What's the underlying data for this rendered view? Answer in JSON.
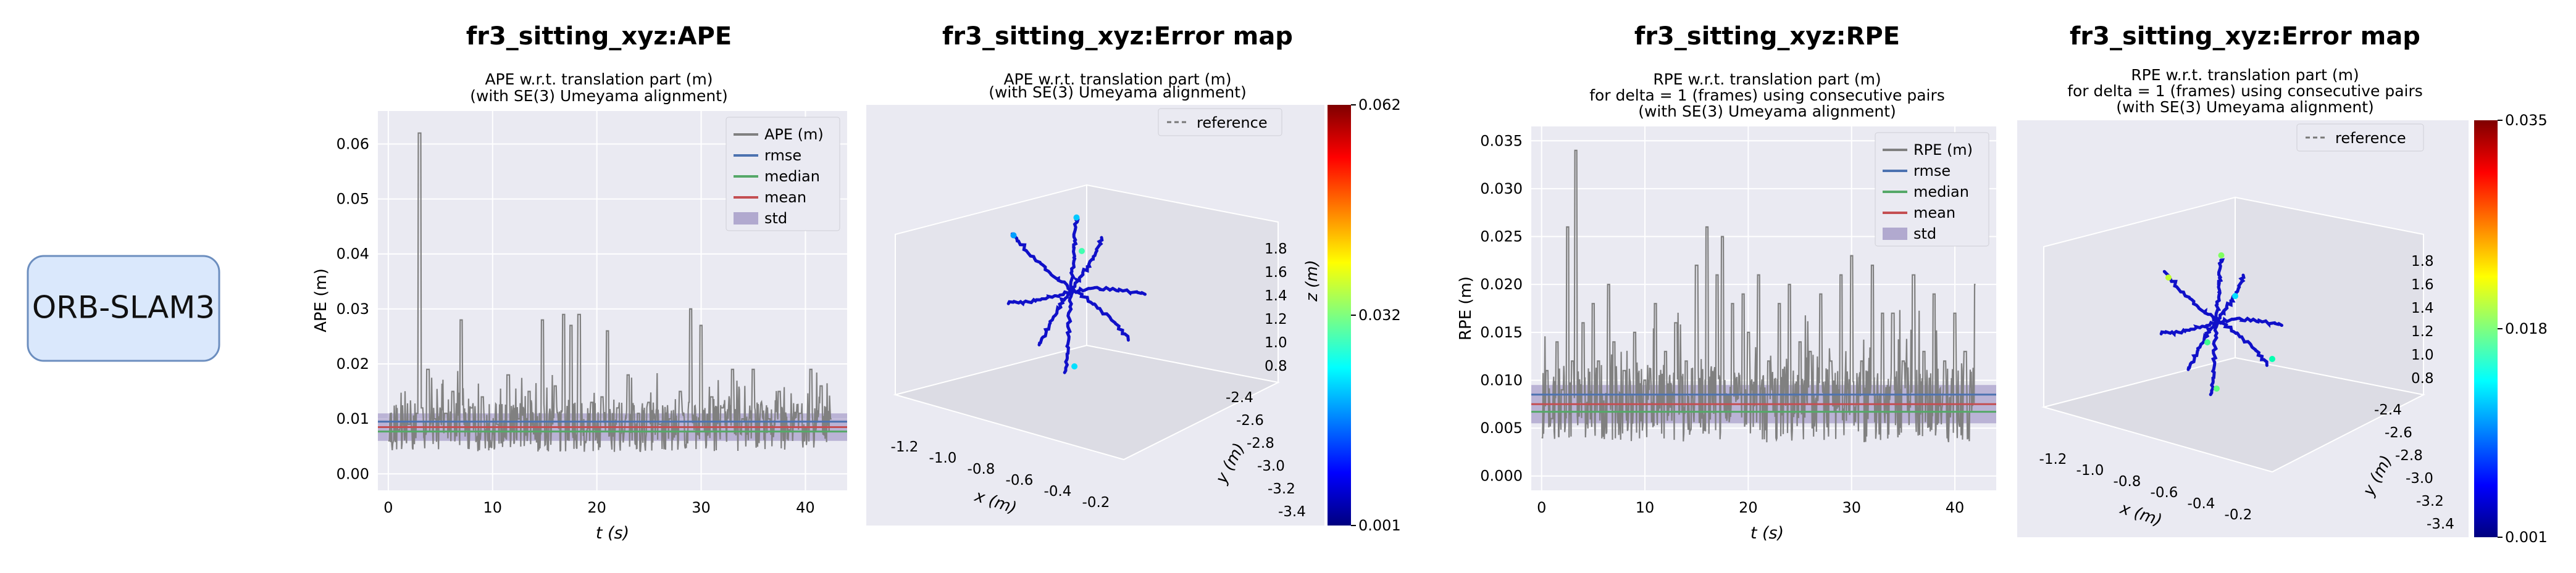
{
  "method_label": "ORB-SLAM3",
  "chart_data": [
    {
      "type": "line",
      "title": "fr3_sitting_xyz:APE",
      "subtitle": [
        "APE w.r.t. translation part (m)",
        "(with SE(3) Umeyama alignment)"
      ],
      "xlabel": "t (s)",
      "ylabel": "APE (m)",
      "xlim": [
        -1,
        44
      ],
      "ylim": [
        -0.003,
        0.066
      ],
      "xticks": [
        0,
        10,
        20,
        30,
        40
      ],
      "yticks": [
        0.0,
        0.01,
        0.02,
        0.03,
        0.04,
        0.05,
        0.06
      ],
      "ytick_labels": [
        "0.00",
        "0.01",
        "0.02",
        "0.03",
        "0.04",
        "0.05",
        "0.06"
      ],
      "grid": true,
      "legend_position": "top-right",
      "legend": [
        "APE (m)",
        "rmse",
        "median",
        "mean",
        "std"
      ],
      "stats": {
        "rmse": 0.0095,
        "median": 0.0077,
        "mean": 0.0085,
        "std_low": 0.006,
        "std_high": 0.011
      },
      "series": [
        {
          "name": "APE (m)",
          "color": "#808080",
          "x": [
            0,
            1,
            2,
            2.8,
            3,
            3.2,
            3.8,
            4.5,
            5.5,
            6.2,
            7,
            8,
            9,
            10.5,
            11.5,
            12.5,
            13.5,
            14.8,
            16,
            16.8,
            17.5,
            18.3,
            19.5,
            20.5,
            21,
            22,
            23,
            24,
            25,
            26,
            27,
            28,
            29,
            30,
            31,
            32,
            33,
            34,
            35,
            36.5,
            37.5,
            38.5,
            39.5,
            40.5,
            41.5,
            42.5
          ],
          "values": [
            0.006,
            0.008,
            0.009,
            0.011,
            0.062,
            0.012,
            0.019,
            0.01,
            0.011,
            0.015,
            0.028,
            0.012,
            0.014,
            0.009,
            0.018,
            0.01,
            0.015,
            0.028,
            0.016,
            0.029,
            0.027,
            0.029,
            0.013,
            0.014,
            0.026,
            0.012,
            0.018,
            0.011,
            0.013,
            0.009,
            0.01,
            0.015,
            0.03,
            0.027,
            0.014,
            0.012,
            0.019,
            0.01,
            0.019,
            0.01,
            0.015,
            0.008,
            0.011,
            0.019,
            0.016,
            0.01
          ]
        }
      ]
    },
    {
      "type": "scatter",
      "title": "fr3_sitting_xyz:Error map",
      "subtitle": [
        "APE w.r.t. translation part (m)",
        "(with SE(3) Umeyama alignment)"
      ],
      "xlabel": "x (m)",
      "ylabel": "y (m)",
      "zlabel": "z (m)",
      "xticks": [
        "-1.2",
        "-1.0",
        "-0.8",
        "-0.6",
        "-0.4",
        "-0.2"
      ],
      "yticks": [
        "-2.4",
        "-2.6",
        "-2.8",
        "-3.0",
        "-3.2",
        "-3.4"
      ],
      "zticks": [
        "0.8",
        "1.0",
        "1.2",
        "1.4",
        "1.6",
        "1.8"
      ],
      "legend": [
        "reference"
      ],
      "legend_position": "top-right",
      "colorbar": {
        "min": "0.001",
        "mid": "0.032",
        "max": "0.062"
      }
    },
    {
      "type": "line",
      "title": "fr3_sitting_xyz:RPE",
      "subtitle": [
        "RPE w.r.t. translation part (m)",
        "for delta = 1 (frames) using consecutive pairs",
        "(with SE(3) Umeyama alignment)"
      ],
      "xlabel": "t (s)",
      "ylabel": "RPE (m)",
      "xlim": [
        -1,
        44
      ],
      "ylim": [
        -0.0015,
        0.0365
      ],
      "xticks": [
        0,
        10,
        20,
        30,
        40
      ],
      "yticks": [
        0.0,
        0.005,
        0.01,
        0.015,
        0.02,
        0.025,
        0.03,
        0.035
      ],
      "ytick_labels": [
        "0.000",
        "0.005",
        "0.010",
        "0.015",
        "0.020",
        "0.025",
        "0.030",
        "0.035"
      ],
      "grid": true,
      "legend_position": "top-right",
      "legend": [
        "RPE (m)",
        "rmse",
        "median",
        "mean",
        "std"
      ],
      "stats": {
        "rmse": 0.0085,
        "median": 0.0067,
        "mean": 0.0075,
        "std_low": 0.0055,
        "std_high": 0.0095
      },
      "series": [
        {
          "name": "RPE (m)",
          "color": "#808080",
          "x": [
            0,
            0.5,
            1,
            1.5,
            2,
            2.5,
            3,
            3.3,
            4,
            5,
            5.5,
            6.5,
            7,
            8,
            9,
            10,
            11,
            12,
            13,
            14,
            15,
            16,
            17,
            17.5,
            18.5,
            19.5,
            20,
            21,
            22,
            23,
            24,
            25,
            26,
            27,
            28,
            29,
            30,
            31,
            32,
            33,
            34,
            35,
            36,
            37,
            38,
            39,
            40,
            41,
            42
          ],
          "values": [
            0.004,
            0.011,
            0.006,
            0.014,
            0.009,
            0.026,
            0.012,
            0.034,
            0.016,
            0.018,
            0.012,
            0.02,
            0.014,
            0.011,
            0.015,
            0.01,
            0.018,
            0.013,
            0.016,
            0.012,
            0.022,
            0.026,
            0.021,
            0.025,
            0.018,
            0.019,
            0.015,
            0.021,
            0.012,
            0.018,
            0.02,
            0.014,
            0.013,
            0.019,
            0.012,
            0.021,
            0.023,
            0.012,
            0.022,
            0.017,
            0.017,
            0.012,
            0.021,
            0.013,
            0.019,
            0.012,
            0.017,
            0.013,
            0.02
          ]
        }
      ]
    },
    {
      "type": "scatter",
      "title": "fr3_sitting_xyz:Error map",
      "subtitle": [
        "RPE w.r.t. translation part (m)",
        "for delta = 1 (frames) using consecutive pairs",
        "(with SE(3) Umeyama alignment)"
      ],
      "xlabel": "x (m)",
      "ylabel": "y (m)",
      "zlabel": "z (m)",
      "xticks": [
        "-1.2",
        "-1.0",
        "-0.8",
        "-0.6",
        "-0.4",
        "-0.2"
      ],
      "yticks": [
        "-2.4",
        "-2.6",
        "-2.8",
        "-3.0",
        "-3.2",
        "-3.4"
      ],
      "zticks": [
        "0.8",
        "1.0",
        "1.2",
        "1.4",
        "1.6",
        "1.8"
      ],
      "legend": [
        "reference"
      ],
      "legend_position": "top-right",
      "colorbar": {
        "min": "0.001",
        "mid": "0.018",
        "max": "0.035"
      }
    }
  ]
}
